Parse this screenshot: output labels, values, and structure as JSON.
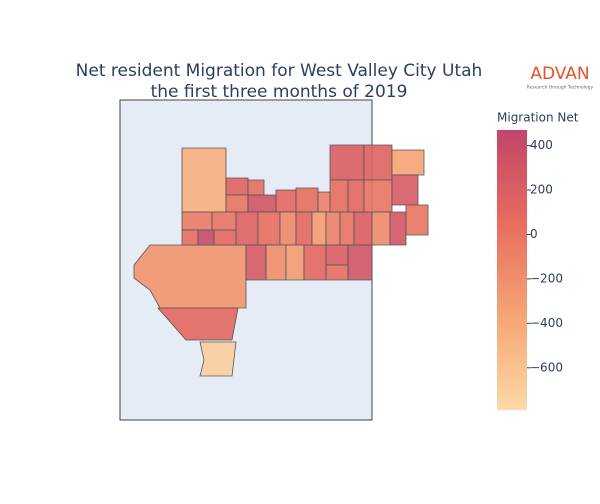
{
  "chart_data": {
    "type": "choropleth",
    "title": [
      "Net resident Migration for West Valley City Utah",
      "the first three months of 2019"
    ],
    "logo": {
      "name": "ADVAN",
      "tagline": "Research through Technology"
    },
    "colorbar_title": "Migration Net",
    "zlim": [
      -790,
      470
    ],
    "zticks": [
      {
        "value": -600,
        "label": "−600"
      },
      {
        "value": -400,
        "label": "−400"
      },
      {
        "value": -200,
        "label": "−200"
      },
      0,
      200,
      400
    ],
    "colorscale": [
      [
        0,
        "#fdd9a8"
      ],
      [
        0.35,
        "#f6a273"
      ],
      [
        0.7,
        "#e4685f"
      ],
      [
        1,
        "#c2466a"
      ]
    ],
    "values": [
      -450,
      -250,
      100,
      -700,
      150,
      50,
      0,
      300,
      100,
      50,
      -100,
      -50,
      0,
      150,
      50,
      -150,
      100,
      -300,
      -100,
      0,
      200,
      50,
      400,
      100,
      250,
      -200,
      -300,
      100,
      200,
      300,
      50,
      200,
      150,
      -350,
      50,
      100,
      0,
      250,
      -150,
      300,
      0
    ]
  }
}
